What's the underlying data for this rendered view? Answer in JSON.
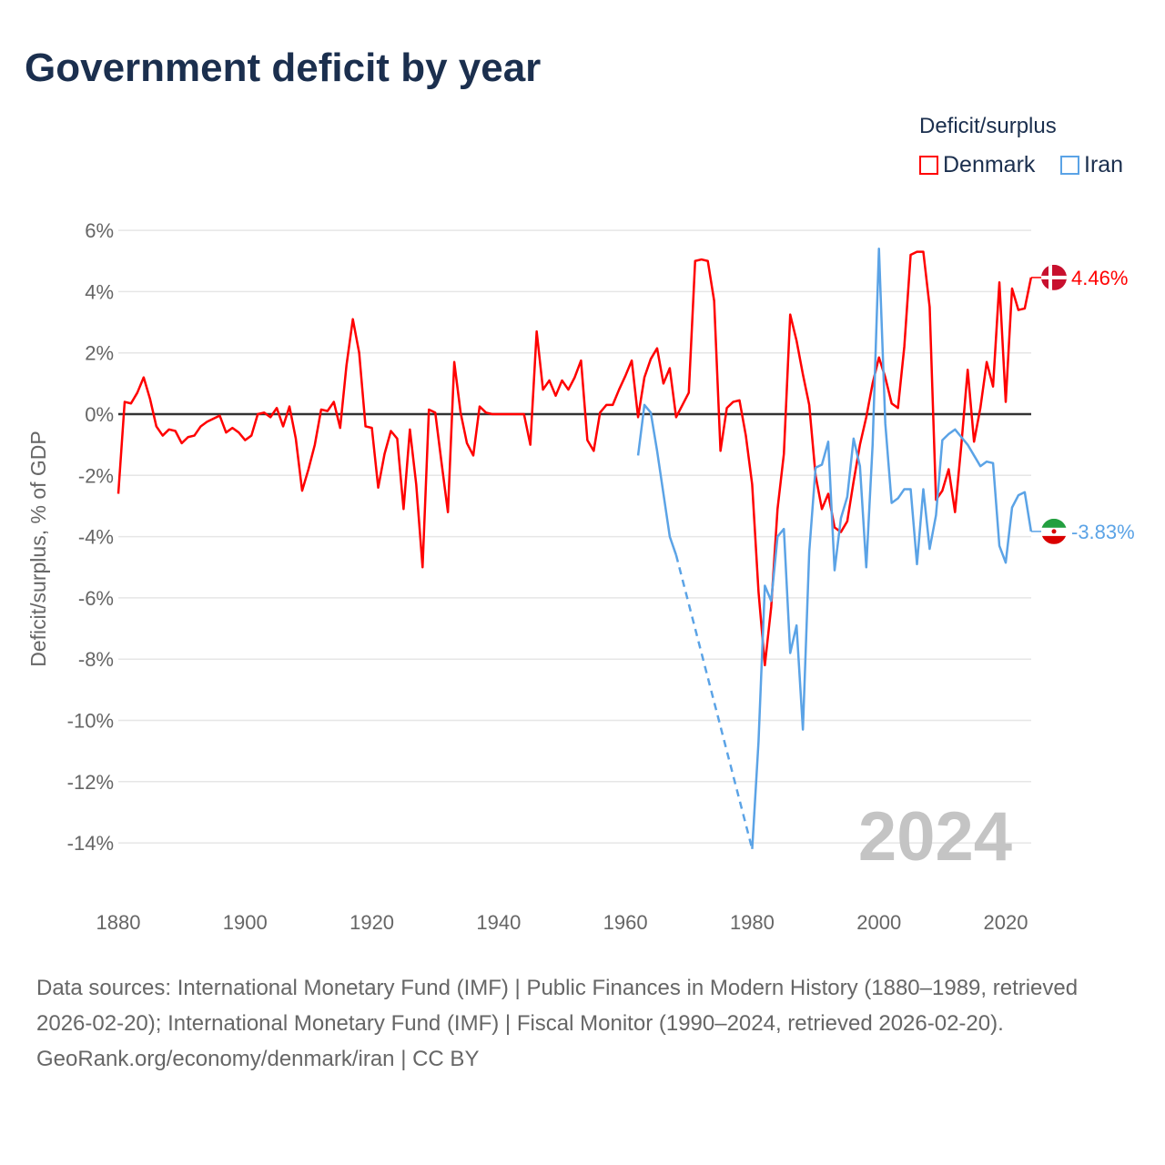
{
  "chart_data": {
    "type": "line",
    "title": "Government deficit by year",
    "ylabel": "Deficit/surplus, % of GDP",
    "xlabel": "",
    "xlim": [
      1880,
      2024
    ],
    "ylim": [
      -14,
      6
    ],
    "x_ticks": [
      "1880",
      "1900",
      "1920",
      "1940",
      "1960",
      "1980",
      "2000",
      "2020"
    ],
    "x_tick_values": [
      1880,
      1900,
      1920,
      1940,
      1960,
      1980,
      2000,
      2020
    ],
    "y_ticks": [
      "6%",
      "4%",
      "2%",
      "0%",
      "-2%",
      "-4%",
      "-6%",
      "-8%",
      "-10%",
      "-12%",
      "-14%"
    ],
    "y_tick_values": [
      6,
      4,
      2,
      0,
      -2,
      -4,
      -6,
      -8,
      -10,
      -12,
      -14
    ],
    "grid": true,
    "legend_title": "Deficit/surplus",
    "legend_position": "top-right",
    "year_watermark": "2024",
    "series": [
      {
        "name": "Denmark",
        "color": "#ff0000",
        "end_label": "4.46%",
        "start_year": 1880,
        "values": [
          -2.6,
          0.4,
          0.35,
          0.7,
          1.2,
          0.5,
          -0.4,
          -0.7,
          -0.5,
          -0.55,
          -0.95,
          -0.75,
          -0.7,
          -0.4,
          -0.25,
          -0.15,
          -0.05,
          -0.6,
          -0.45,
          -0.6,
          -0.85,
          -0.7,
          0,
          0.05,
          -0.1,
          0.2,
          -0.4,
          0.25,
          -0.8,
          -2.5,
          -1.8,
          -1.0,
          0.15,
          0.1,
          0.4,
          -0.45,
          1.6,
          3.1,
          2.0,
          -0.4,
          -0.45,
          -2.4,
          -1.3,
          -0.55,
          -0.8,
          -3.1,
          -0.5,
          -2.3,
          -5.0,
          0.15,
          0.05,
          -1.6,
          -3.2,
          1.7,
          0.05,
          -0.95,
          -1.35,
          0.25,
          0.05,
          0,
          0,
          0,
          0,
          0,
          0,
          -1.0,
          2.7,
          0.8,
          1.1,
          0.6,
          1.1,
          0.8,
          1.2,
          1.75,
          -0.85,
          -1.2,
          0.05,
          0.3,
          0.3,
          0.8,
          1.25,
          1.75,
          -0.1,
          1.2,
          1.8,
          2.15,
          1.0,
          1.5,
          -0.1,
          0.3,
          0.7,
          5.0,
          5.05,
          5.0,
          3.7,
          -1.2,
          0.2,
          0.4,
          0.45,
          -0.7,
          -2.3,
          -5.8,
          -8.2,
          -6.3,
          -3.1,
          -1.3,
          3.25,
          2.4,
          1.3,
          0.3,
          -2.0,
          -3.1,
          -2.6,
          -3.7,
          -3.85,
          -3.5,
          -2.2,
          -1.0,
          -0.1,
          1.0,
          1.85,
          1.2,
          0.35,
          0.2,
          2.2,
          5.2,
          5.3,
          5.3,
          3.5,
          -2.8,
          -2.5,
          -1.8,
          -3.2,
          -1.0,
          1.45,
          -0.9,
          0.2,
          1.7,
          0.9,
          4.3,
          0.4,
          4.1,
          3.4,
          3.45,
          4.46
        ]
      },
      {
        "name": "Iran",
        "color": "#5ba3e6",
        "end_label": "-3.83%",
        "start_year": 1962,
        "gap": [
          1968,
          1980
        ],
        "values": [
          -1.35,
          0.3,
          0.05,
          -1.2,
          -2.6,
          -4.0,
          -4.6,
          null,
          null,
          null,
          null,
          null,
          null,
          null,
          null,
          null,
          null,
          null,
          -14.2,
          -10.7,
          -5.6,
          -6.1,
          -4.0,
          -3.75,
          -7.8,
          -6.9,
          -10.3,
          -4.5,
          -1.75,
          -1.65,
          -0.9,
          -5.1,
          -3.4,
          -2.7,
          -0.8,
          -1.7,
          -5.0,
          -1.0,
          5.4,
          -0.3,
          -2.9,
          -2.75,
          -2.45,
          -2.45,
          -4.9,
          -2.45,
          -4.4,
          -3.3,
          -0.85,
          -0.65,
          -0.5,
          -0.75,
          -1.0,
          -1.35,
          -1.7,
          -1.55,
          -1.6,
          -4.3,
          -4.85,
          -3.05,
          -2.65,
          -2.55,
          -3.83
        ]
      }
    ]
  },
  "footer": {
    "sources": "Data sources: International Monetary Fund (IMF) | Public Finances in Modern History (1880–1989, retrieved 2026-02-20); International Monetary Fund (IMF) | Fiscal Monitor (1990–2024, retrieved 2026-02-20).",
    "credit": "GeoRank.org/economy/denmark/iran | CC BY"
  }
}
